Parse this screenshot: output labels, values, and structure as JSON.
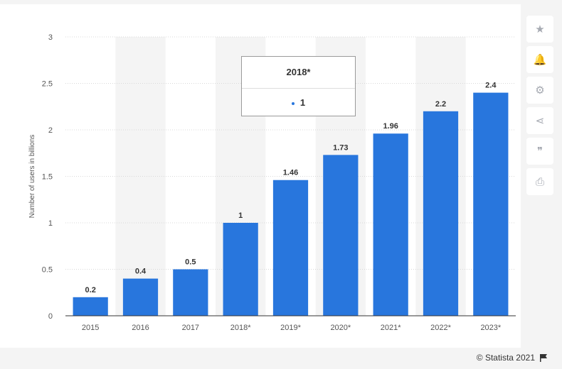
{
  "chart_data": {
    "type": "bar",
    "categories": [
      "2015",
      "2016",
      "2017",
      "2018*",
      "2019*",
      "2020*",
      "2021*",
      "2022*",
      "2023*"
    ],
    "values": [
      0.2,
      0.4,
      0.5,
      1,
      1.46,
      1.73,
      1.96,
      2.2,
      2.4
    ],
    "value_labels": [
      "0.2",
      "0.4",
      "0.5",
      "1",
      "1.46",
      "1.73",
      "1.96",
      "2.2",
      "2.4"
    ],
    "ylabel": "Number of users in billions",
    "xlabel": "",
    "ylim": [
      0,
      3
    ],
    "yticks": [
      "0",
      "0.5",
      "1",
      "1.5",
      "2",
      "2.5",
      "3"
    ],
    "grid": true,
    "bar_color": "#2876dd",
    "highlight_band_color": "#f4f4f4"
  },
  "tooltip": {
    "title": "2018*",
    "value": "1",
    "dot_color": "#2876dd"
  },
  "toolbar": {
    "buttons": [
      "star-icon",
      "bell-icon",
      "gear-icon",
      "share-icon",
      "quote-icon",
      "print-icon"
    ],
    "glyphs": [
      "★",
      "🔔",
      "⚙",
      "⋖",
      "❞",
      "⎙"
    ]
  },
  "footer": {
    "copyright": "© Statista 2021"
  }
}
